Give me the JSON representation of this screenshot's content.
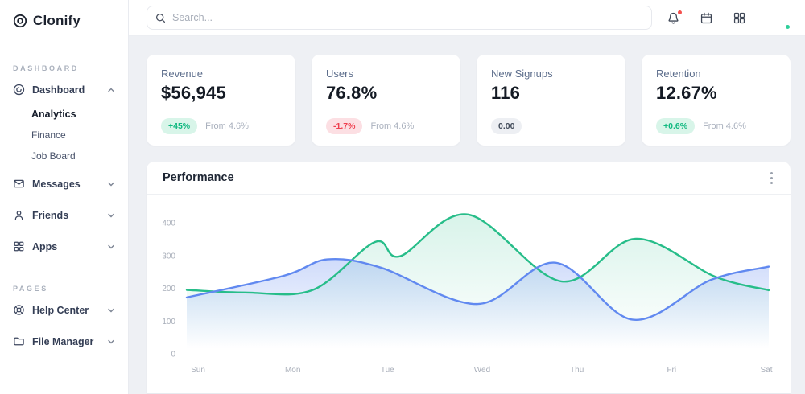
{
  "brand": {
    "name": "Clonify"
  },
  "topbar": {
    "search": {
      "placeholder": "Search...",
      "value": ""
    },
    "icons": [
      "bell",
      "calendar",
      "apps-grid",
      "avatar"
    ],
    "bell_has_notification": true,
    "avatar_status": "online"
  },
  "sidebar": {
    "sections": [
      {
        "label": "DASHBOARD",
        "items": [
          {
            "label": "Dashboard",
            "icon": "dashboard-icon",
            "expanded": true,
            "children": [
              {
                "label": "Analytics",
                "active": true
              },
              {
                "label": "Finance",
                "active": false
              },
              {
                "label": "Job Board",
                "active": false
              }
            ]
          },
          {
            "label": "Messages",
            "icon": "messages-icon",
            "expanded": false
          },
          {
            "label": "Friends",
            "icon": "friends-icon",
            "expanded": false
          },
          {
            "label": "Apps",
            "icon": "apps-icon",
            "expanded": false
          }
        ]
      },
      {
        "label": "PAGES",
        "items": [
          {
            "label": "Help Center",
            "icon": "help-icon",
            "expanded": false
          },
          {
            "label": "File Manager",
            "icon": "folder-icon",
            "expanded": false
          }
        ]
      }
    ]
  },
  "stats": [
    {
      "label": "Revenue",
      "value": "$56,945",
      "badge": "+45%",
      "badge_type": "positive",
      "note": "From 4.6%"
    },
    {
      "label": "Users",
      "value": "76.8%",
      "badge": "-1.7%",
      "badge_type": "negative",
      "note": "From 4.6%"
    },
    {
      "label": "New Signups",
      "value": "116",
      "badge": "0.00",
      "badge_type": "neutral",
      "note": ""
    },
    {
      "label": "Retention",
      "value": "12.67%",
      "badge": "+0.6%",
      "badge_type": "positive",
      "note": "From 4.6%"
    }
  ],
  "chart_data": {
    "type": "area",
    "title": "Performance",
    "categories": [
      "Sun",
      "Mon",
      "Tue",
      "Wed",
      "Thu",
      "Fri",
      "Sat"
    ],
    "yticks": [
      0,
      100,
      200,
      300,
      400
    ],
    "ylim": [
      0,
      430
    ],
    "grid": false,
    "legend": "none",
    "series": [
      {
        "name": "series-green",
        "color": "#27bd89",
        "fill_opacity_top": 0.18,
        "points": [
          [
            0,
            195
          ],
          [
            0.6,
            187
          ],
          [
            1.3,
            195
          ],
          [
            1.94,
            341
          ],
          [
            2.2,
            298
          ],
          [
            2.9,
            425
          ],
          [
            3.86,
            221
          ],
          [
            4.63,
            351
          ],
          [
            5.45,
            235
          ],
          [
            6,
            194
          ]
        ]
      },
      {
        "name": "series-blue",
        "color": "#6189f0",
        "fill_opacity_top": 0.3,
        "points": [
          [
            0,
            172
          ],
          [
            1,
            238
          ],
          [
            1.45,
            288
          ],
          [
            2,
            263
          ],
          [
            3,
            152
          ],
          [
            3.8,
            278
          ],
          [
            4.6,
            104
          ],
          [
            5.4,
            225
          ],
          [
            6,
            266
          ]
        ]
      }
    ]
  },
  "colors": {
    "accent_green": "#12b981",
    "accent_red": "#ef4050",
    "line_green": "#27bd89",
    "line_blue": "#6189f0",
    "bg": "#eef0f4",
    "tick_label": "#a8aeb9"
  }
}
